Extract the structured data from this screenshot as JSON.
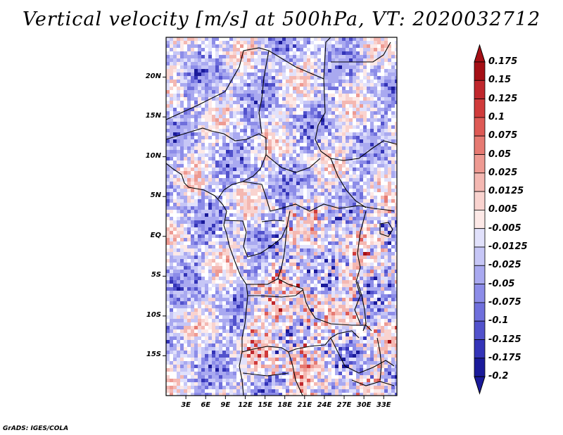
{
  "title": "Vertical velocity [m/s] at 500hPa, VT: 2020032712",
  "credit": "GrADS: IGES/COLA",
  "map": {
    "region": "Central Africa",
    "lat_range": [
      -20,
      25
    ],
    "lon_range": [
      0,
      35
    ],
    "lat_labels": [
      {
        "lat": 20,
        "text": "20N"
      },
      {
        "lat": 15,
        "text": "15N"
      },
      {
        "lat": 10,
        "text": "10N"
      },
      {
        "lat": 5,
        "text": "5N"
      },
      {
        "lat": 0,
        "text": "EQ"
      },
      {
        "lat": -5,
        "text": "5S"
      },
      {
        "lat": -10,
        "text": "10S"
      },
      {
        "lat": -15,
        "text": "15S"
      }
    ],
    "lon_labels": [
      {
        "lon": 3,
        "text": "3E"
      },
      {
        "lon": 6,
        "text": "6E"
      },
      {
        "lon": 9,
        "text": "9E"
      },
      {
        "lon": 12,
        "text": "12E"
      },
      {
        "lon": 15,
        "text": "15E"
      },
      {
        "lon": 18,
        "text": "18E"
      },
      {
        "lon": 21,
        "text": "21E"
      },
      {
        "lon": 24,
        "text": "24E"
      },
      {
        "lon": 27,
        "text": "27E"
      },
      {
        "lon": 30,
        "text": "30E"
      },
      {
        "lon": 33,
        "text": "33E"
      }
    ]
  },
  "colorbar": {
    "levels": [
      {
        "label": "0.175",
        "color": "#a50f15"
      },
      {
        "label": "0.15",
        "color": "#c0272d"
      },
      {
        "label": "0.125",
        "color": "#d03b3b"
      },
      {
        "label": "0.1",
        "color": "#de5a55"
      },
      {
        "label": "0.075",
        "color": "#e67a72"
      },
      {
        "label": "0.05",
        "color": "#ee9a92"
      },
      {
        "label": "0.025",
        "color": "#f4b8b2"
      },
      {
        "label": "0.0125",
        "color": "#f9d3cf"
      },
      {
        "label": "0.005",
        "color": "#fde9e7"
      },
      {
        "label": "-0.005",
        "color": "#ffffff"
      },
      {
        "label": "-0.0125",
        "color": "#e1e1fb"
      },
      {
        "label": "-0.025",
        "color": "#c6c6f6"
      },
      {
        "label": "-0.05",
        "color": "#a9a9f0"
      },
      {
        "label": "-0.075",
        "color": "#8c8ce8"
      },
      {
        "label": "-0.1",
        "color": "#6f6fdc"
      },
      {
        "label": "-0.125",
        "color": "#5252cc"
      },
      {
        "label": "-0.175",
        "color": "#3434b8"
      },
      {
        "label": "-0.2",
        "color": "#1a1a9a"
      }
    ],
    "top_color": "#a50f15",
    "bottom_color": "#1a1a9a"
  }
}
